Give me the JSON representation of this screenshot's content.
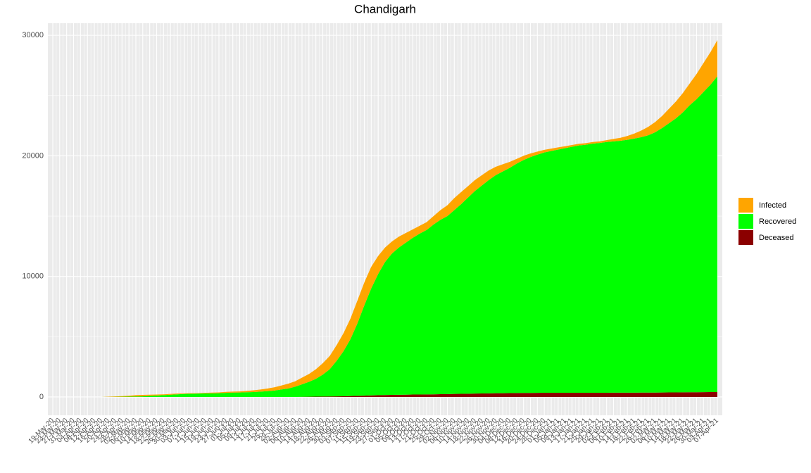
{
  "chart_data": {
    "type": "area",
    "title": "Chandigarh",
    "categories": [
      "19-Mar-20",
      "23-Mar-20",
      "27-Mar-20",
      "31-Mar-20",
      "04-Apr-20",
      "08-Apr-20",
      "12-Apr-20",
      "16-Apr-20",
      "20-Apr-20",
      "24-Apr-20",
      "28-Apr-20",
      "02-May-20",
      "06-May-20",
      "10-May-20",
      "14-May-20",
      "18-May-20",
      "22-May-20",
      "26-May-20",
      "30-May-20",
      "03-Jun-20",
      "07-Jun-20",
      "11-Jun-20",
      "15-Jun-20",
      "19-Jun-20",
      "23-Jun-20",
      "27-Jun-20",
      "01-Jul-20",
      "05-Jul-20",
      "09-Jul-20",
      "13-Jul-20",
      "17-Jul-20",
      "21-Jul-20",
      "25-Jul-20",
      "29-Jul-20",
      "02-Aug-20",
      "06-Aug-20",
      "10-Aug-20",
      "14-Aug-20",
      "18-Aug-20",
      "22-Aug-20",
      "26-Aug-20",
      "30-Aug-20",
      "03-Sep-20",
      "07-Sep-20",
      "11-Sep-20",
      "15-Sep-20",
      "19-Sep-20",
      "23-Sep-20",
      "27-Sep-20",
      "01-Oct-20",
      "05-Oct-20",
      "09-Oct-20",
      "13-Oct-20",
      "17-Oct-20",
      "21-Oct-20",
      "25-Oct-20",
      "29-Oct-20",
      "02-Nov-20",
      "06-Nov-20",
      "10-Nov-20",
      "14-Nov-20",
      "18-Nov-20",
      "22-Nov-20",
      "26-Nov-20",
      "30-Nov-20",
      "04-Dec-20",
      "08-Dec-20",
      "12-Dec-20",
      "16-Dec-20",
      "20-Dec-20",
      "24-Dec-20",
      "28-Dec-20",
      "01-Jan-21",
      "05-Jan-21",
      "09-Jan-21",
      "13-Jan-21",
      "17-Jan-21",
      "21-Jan-21",
      "25-Jan-21",
      "29-Jan-21",
      "02-Feb-21",
      "06-Feb-21",
      "10-Feb-21",
      "14-Feb-21",
      "18-Feb-21",
      "22-Feb-21",
      "26-Feb-21",
      "02-Mar-21",
      "06-Mar-21",
      "10-Mar-21",
      "14-Mar-21",
      "18-Mar-21",
      "22-Mar-21",
      "26-Mar-21",
      "30-Mar-21",
      "03-Apr-21",
      "07-Apr-21"
    ],
    "series": [
      {
        "name": "Infected",
        "color": "#FFA500",
        "values": [
          0,
          0,
          0,
          0,
          0,
          0,
          0,
          0,
          25,
          40,
          50,
          70,
          110,
          120,
          100,
          80,
          70,
          60,
          60,
          50,
          40,
          40,
          50,
          60,
          70,
          80,
          80,
          90,
          110,
          140,
          180,
          220,
          270,
          330,
          400,
          450,
          550,
          650,
          800,
          950,
          1100,
          1300,
          1500,
          1700,
          1900,
          1900,
          1800,
          1500,
          1200,
          1000,
          900,
          800,
          700,
          650,
          650,
          700,
          800,
          900,
          1000,
          1000,
          950,
          900,
          850,
          800,
          700,
          600,
          500,
          400,
          350,
          300,
          250,
          220,
          200,
          180,
          160,
          150,
          140,
          130,
          130,
          130,
          150,
          200,
          250,
          320,
          420,
          550,
          700,
          850,
          1000,
          1200,
          1400,
          1600,
          1800,
          2100,
          2400,
          2700,
          3000
        ]
      },
      {
        "name": "Recovered",
        "color": "#00FF00",
        "values": [
          0,
          0,
          0,
          0,
          0,
          0,
          0,
          0,
          5,
          10,
          20,
          30,
          40,
          50,
          90,
          120,
          150,
          190,
          220,
          250,
          270,
          280,
          290,
          300,
          310,
          340,
          360,
          370,
          390,
          410,
          440,
          480,
          530,
          620,
          700,
          850,
          1040,
          1230,
          1470,
          1815,
          2260,
          2950,
          3740,
          4725,
          6010,
          7490,
          8870,
          10055,
          11040,
          11730,
          12220,
          12610,
          13000,
          13345,
          13640,
          14080,
          14470,
          14760,
          15250,
          15740,
          16280,
          16820,
          17260,
          17700,
          18090,
          18385,
          18680,
          19025,
          19320,
          19565,
          19760,
          19935,
          20050,
          20170,
          20290,
          20400,
          20510,
          20570,
          20670,
          20720,
          20800,
          20845,
          20895,
          20975,
          21075,
          21190,
          21340,
          21585,
          21930,
          22325,
          22720,
          23215,
          23810,
          24305,
          24900,
          25495,
          26190
        ]
      },
      {
        "name": "Deceased",
        "color": "#8B0000",
        "values": [
          0,
          0,
          0,
          0,
          0,
          0,
          0,
          0,
          0,
          0,
          0,
          0,
          0,
          0,
          0,
          0,
          0,
          0,
          0,
          0,
          0,
          0,
          0,
          0,
          0,
          0,
          0,
          0,
          0,
          0,
          0,
          0,
          0,
          0,
          0,
          0,
          10,
          20,
          30,
          35,
          40,
          50,
          60,
          75,
          90,
          110,
          130,
          145,
          160,
          170,
          180,
          190,
          200,
          205,
          210,
          220,
          230,
          240,
          250,
          260,
          270,
          280,
          290,
          300,
          310,
          315,
          320,
          325,
          330,
          335,
          340,
          345,
          350,
          350,
          350,
          350,
          350,
          350,
          350,
          350,
          350,
          355,
          355,
          355,
          355,
          360,
          360,
          365,
          370,
          375,
          380,
          385,
          390,
          395,
          400,
          405,
          410
        ]
      }
    ],
    "ylim": [
      -1520,
      31000
    ],
    "yticks": [
      0,
      10000,
      20000,
      30000
    ],
    "grid": true
  }
}
